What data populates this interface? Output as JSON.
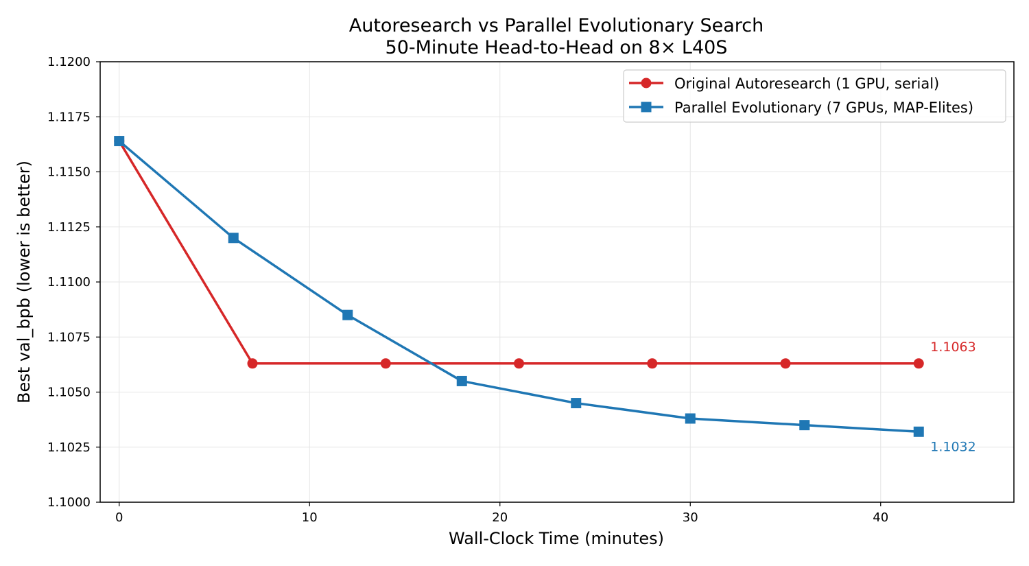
{
  "chart_data": {
    "type": "line",
    "title": "Autoresearch vs Parallel Evolutionary Search",
    "subtitle": "50-Minute Head-to-Head on 8× L40S",
    "xlabel": "Wall-Clock Time (minutes)",
    "ylabel": "Best val_bpb (lower is better)",
    "xlim": [
      -1,
      47
    ],
    "ylim": [
      1.1,
      1.12
    ],
    "xticks": [
      0,
      10,
      20,
      30,
      40
    ],
    "yticks": [
      1.1,
      1.1025,
      1.105,
      1.1075,
      1.11,
      1.1125,
      1.115,
      1.1175,
      1.12
    ],
    "xtick_labels": [
      "0",
      "10",
      "20",
      "30",
      "40"
    ],
    "ytick_labels": [
      "1.1000",
      "1.1025",
      "1.1050",
      "1.1075",
      "1.1100",
      "1.1125",
      "1.1150",
      "1.1175",
      "1.1200"
    ],
    "grid": true,
    "legend": "upper-right",
    "series": [
      {
        "name": "Original Autoresearch (1 GPU, serial)",
        "color": "#d62728",
        "marker": "circle",
        "x": [
          0,
          7,
          14,
          21,
          28,
          35,
          42
        ],
        "y": [
          1.1164,
          1.1063,
          1.1063,
          1.1063,
          1.1063,
          1.1063,
          1.1063
        ],
        "end_label": "1.1063"
      },
      {
        "name": "Parallel Evolutionary (7 GPUs, MAP-Elites)",
        "color": "#1f77b4",
        "marker": "square",
        "x": [
          0,
          6,
          12,
          18,
          24,
          30,
          36,
          42
        ],
        "y": [
          1.1164,
          1.112,
          1.1085,
          1.1055,
          1.1045,
          1.1038,
          1.1035,
          1.1032
        ],
        "end_label": "1.1032"
      }
    ]
  }
}
